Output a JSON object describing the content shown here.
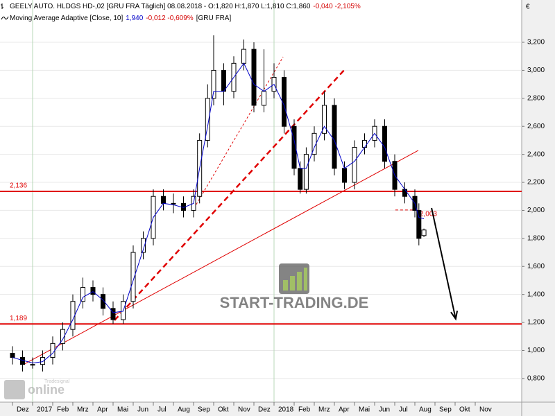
{
  "chart_data": {
    "type": "candlestick",
    "header": [
      {
        "text": "GEELY AUTO. HLDGS HD-,02 [GRU FRA  Täglich] 08.08.2018 - O:1,820 H:1,870 L:1,810 C:1,860",
        "color": "#000000"
      },
      {
        "text": "-0,040 -2,105%",
        "color": "#d40000"
      }
    ],
    "indicator": [
      {
        "text": "Moving Average Adaptive [Close, 10]",
        "color": "#000000"
      },
      {
        "text": "1,940",
        "color": "#0000c8"
      },
      {
        "text": "-0,012 -0,609%",
        "color": "#d40000"
      },
      {
        "text": "[GRU FRA]",
        "color": "#000000"
      }
    ],
    "currency": "€",
    "watermark": "START-TRADING.DE",
    "brand": {
      "name": "online",
      "tag": "Tradesignal"
    },
    "x": [
      -1,
      -0.5,
      0,
      0.5,
      1,
      1.5,
      2,
      2.5,
      3,
      3.5,
      4,
      4.5,
      5,
      5.5,
      6,
      6.5,
      7,
      7.5,
      8,
      8.3,
      8.7,
      9,
      9.5,
      10,
      10.5,
      11,
      11.5,
      12,
      12.5,
      13,
      13.3,
      13.6,
      14,
      14.5,
      15,
      15.5,
      16,
      16.5,
      17,
      17.5,
      18,
      18.5,
      19,
      19.2,
      19.45
    ],
    "open": [
      0.98,
      0.95,
      0.9,
      0.9,
      0.95,
      1.05,
      1.15,
      1.35,
      1.45,
      1.4,
      1.3,
      1.22,
      1.35,
      1.7,
      1.8,
      2.1,
      2.05,
      2.05,
      2.0,
      2.1,
      2.5,
      2.8,
      3.0,
      2.85,
      3.05,
      3.15,
      2.75,
      2.85,
      2.95,
      2.6,
      2.3,
      2.15,
      2.4,
      2.55,
      2.75,
      2.3,
      2.2,
      2.45,
      2.5,
      2.6,
      2.35,
      2.15,
      2.1,
      2.0,
      1.82
    ],
    "high": [
      1.03,
      1.0,
      0.95,
      1.0,
      1.1,
      1.2,
      1.4,
      1.52,
      1.5,
      1.45,
      1.35,
      1.4,
      1.75,
      1.85,
      2.15,
      2.15,
      2.12,
      2.1,
      2.15,
      2.55,
      2.9,
      3.25,
      3.05,
      3.1,
      3.22,
      3.2,
      3.15,
      3.05,
      3.0,
      2.65,
      2.35,
      2.45,
      2.6,
      2.85,
      2.8,
      2.35,
      2.5,
      2.55,
      2.65,
      2.65,
      2.4,
      2.2,
      2.15,
      2.05,
      1.87
    ],
    "low": [
      0.9,
      0.85,
      0.87,
      0.85,
      0.9,
      1.0,
      1.1,
      1.3,
      1.35,
      1.25,
      1.19,
      1.19,
      1.3,
      1.65,
      1.75,
      2.0,
      1.98,
      1.95,
      1.95,
      2.05,
      2.45,
      2.75,
      2.75,
      2.8,
      3.0,
      2.7,
      2.7,
      2.8,
      2.55,
      2.25,
      2.12,
      2.12,
      2.35,
      2.5,
      2.25,
      2.15,
      2.15,
      2.4,
      2.45,
      2.3,
      2.1,
      2.05,
      1.95,
      1.75,
      1.81
    ],
    "close": [
      0.95,
      0.9,
      0.9,
      0.95,
      1.05,
      1.15,
      1.35,
      1.45,
      1.4,
      1.3,
      1.22,
      1.35,
      1.7,
      1.8,
      2.1,
      2.05,
      2.05,
      2.0,
      2.1,
      2.5,
      2.8,
      3.0,
      2.85,
      3.05,
      3.15,
      2.75,
      2.85,
      2.95,
      2.6,
      2.3,
      2.15,
      2.4,
      2.55,
      2.75,
      2.3,
      2.2,
      2.45,
      2.5,
      2.6,
      2.35,
      2.15,
      2.1,
      2.0,
      1.8,
      1.86
    ],
    "ma": {
      "color": "#0000c8",
      "values": [
        0.95,
        0.93,
        0.91,
        0.92,
        0.98,
        1.08,
        1.22,
        1.38,
        1.42,
        1.36,
        1.27,
        1.28,
        1.5,
        1.72,
        1.95,
        2.05,
        2.04,
        2.02,
        2.05,
        2.3,
        2.6,
        2.85,
        2.85,
        2.95,
        3.05,
        2.9,
        2.85,
        2.9,
        2.75,
        2.5,
        2.3,
        2.3,
        2.45,
        2.6,
        2.5,
        2.3,
        2.35,
        2.45,
        2.55,
        2.45,
        2.25,
        2.15,
        2.05,
        1.95,
        1.94
      ]
    },
    "levels": [
      {
        "value": 2.136,
        "label": "2,136",
        "color": "#e00000"
      },
      {
        "value": 1.189,
        "label": "1,189",
        "color": "#e00000"
      }
    ],
    "trendlines": [
      {
        "x": [
          -0.41,
          19.17
        ],
        "y": [
          0.903,
          2.428
        ],
        "color": "#e00000",
        "width": 1,
        "dash": "none"
      },
      {
        "x": [
          4.07,
          15.52
        ],
        "y": [
          1.215,
          3.007
        ],
        "color": "#e00000",
        "width": 2.5,
        "dash": "8 5"
      },
      {
        "x": [
          8.03,
          12.45
        ],
        "y": [
          2.017,
          3.096
        ],
        "color": "#e00000",
        "width": 1,
        "dash": "3 3"
      },
      {
        "x": [
          18.03,
          19.17
        ],
        "y": [
          2.003,
          2.003
        ],
        "color": "#e00000",
        "width": 1,
        "dash": "4 3",
        "label": "2,003"
      }
    ],
    "arrow": {
      "x": [
        19.83,
        21.03
      ],
      "y": [
        2.017,
        1.225
      ],
      "color": "#000000"
    },
    "xlim": [
      -1.62,
      24.31
    ],
    "ylim": [
      0.631,
      3.502
    ],
    "xticks": [
      {
        "value": -1,
        "label": "Dez"
      },
      {
        "value": 0,
        "label": "2017"
      },
      {
        "value": 1,
        "label": "Feb"
      },
      {
        "value": 2,
        "label": "Mrz"
      },
      {
        "value": 3,
        "label": "Apr"
      },
      {
        "value": 4,
        "label": "Mai"
      },
      {
        "value": 5,
        "label": "Jun"
      },
      {
        "value": 6,
        "label": "Jul"
      },
      {
        "value": 7,
        "label": "Aug"
      },
      {
        "value": 8,
        "label": "Sep"
      },
      {
        "value": 9,
        "label": "Okt"
      },
      {
        "value": 10,
        "label": "Nov"
      },
      {
        "value": 11,
        "label": "Dez"
      },
      {
        "value": 12,
        "label": "2018"
      },
      {
        "value": 13,
        "label": "Feb"
      },
      {
        "value": 14,
        "label": "Mrz"
      },
      {
        "value": 15,
        "label": "Apr"
      },
      {
        "value": 16,
        "label": "Mai"
      },
      {
        "value": 17,
        "label": "Jun"
      },
      {
        "value": 18,
        "label": "Jul"
      },
      {
        "value": 19,
        "label": "Aug"
      },
      {
        "value": 20,
        "label": "Sep"
      },
      {
        "value": 21,
        "label": "Okt"
      },
      {
        "value": 22,
        "label": "Nov"
      }
    ],
    "year_lines": [
      0,
      12
    ],
    "yticks": [
      {
        "value": 0.8,
        "label": "0,800"
      },
      {
        "value": 1.0,
        "label": "1,000"
      },
      {
        "value": 1.2,
        "label": "1,200"
      },
      {
        "value": 1.4,
        "label": "1,400"
      },
      {
        "value": 1.6,
        "label": "1,600"
      },
      {
        "value": 1.8,
        "label": "1,800"
      },
      {
        "value": 2.0,
        "label": "2,000"
      },
      {
        "value": 2.2,
        "label": "2,200"
      },
      {
        "value": 2.4,
        "label": "2,400"
      },
      {
        "value": 2.6,
        "label": "2,600"
      },
      {
        "value": 2.8,
        "label": "2,800"
      },
      {
        "value": 3.0,
        "label": "3,000"
      },
      {
        "value": 3.2,
        "label": "3,200"
      }
    ],
    "grid": true
  }
}
